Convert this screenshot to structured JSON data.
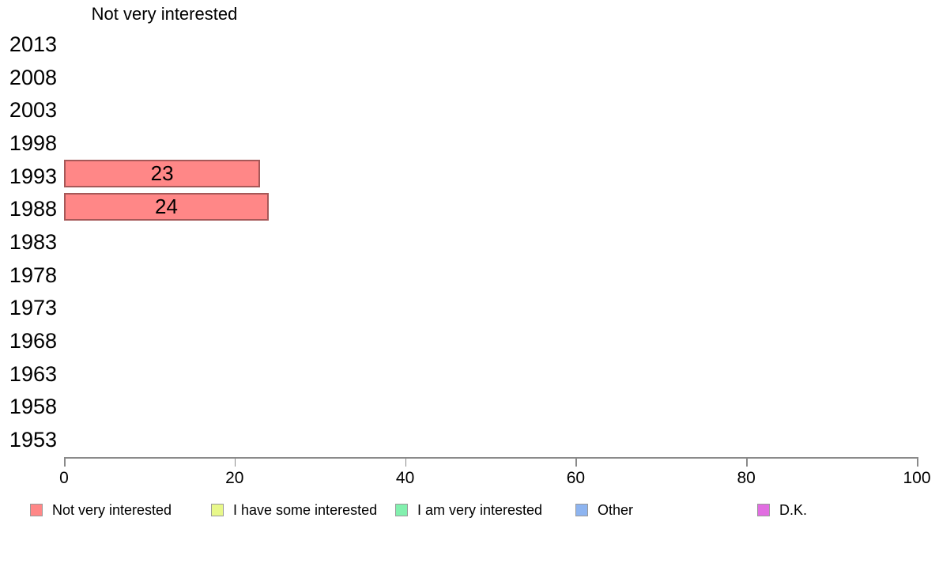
{
  "chart_data": {
    "type": "bar",
    "orientation": "horizontal",
    "title": "Not very interested",
    "categories": [
      "2013",
      "2008",
      "2003",
      "1998",
      "1993",
      "1988",
      "1983",
      "1978",
      "1973",
      "1968",
      "1963",
      "1958",
      "1953"
    ],
    "series": [
      {
        "name": "Not very interested",
        "color": "#FF8787",
        "values": [
          null,
          null,
          null,
          null,
          23,
          24,
          null,
          null,
          null,
          null,
          null,
          null,
          null
        ]
      }
    ],
    "bar_value_labels": [
      null,
      null,
      null,
      null,
      "23",
      "24",
      null,
      null,
      null,
      null,
      null,
      null,
      null
    ],
    "xlabel": "",
    "ylabel": "",
    "xlim": [
      0,
      100
    ],
    "x_ticks": [
      0,
      20,
      40,
      60,
      80,
      100
    ],
    "grid": "off",
    "legend_position": "bottom",
    "legend": [
      {
        "label": "Not very interested",
        "color": "#FF8787"
      },
      {
        "label": "I have some interested",
        "color": "#E8F88A"
      },
      {
        "label": "I am very interested",
        "color": "#82F0AE"
      },
      {
        "label": "Other",
        "color": "#8DB4F0"
      },
      {
        "label": "D.K.",
        "color": "#E16DE1"
      }
    ]
  },
  "colors": {
    "background": "#ffffff",
    "text": "#000000",
    "axis": "#8a8a8a",
    "bar_border": "rgba(0,0,0,0.35)",
    "swatch_border": "#999999"
  }
}
